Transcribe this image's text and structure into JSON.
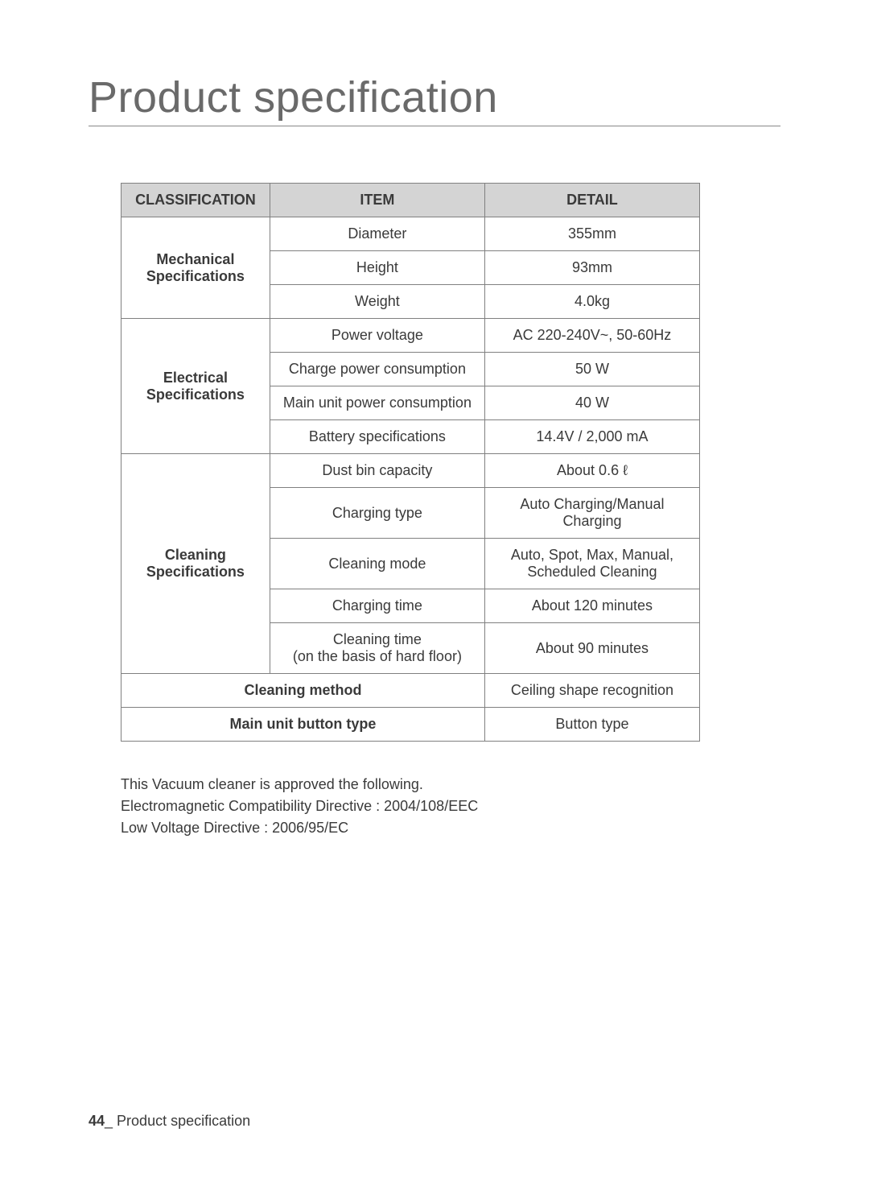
{
  "title": "Product specification",
  "table": {
    "headers": {
      "classification": "CLASSIFICATION",
      "item": "ITEM",
      "detail": "DETAIL"
    },
    "sections": {
      "mechanical": {
        "label": "Mechanical Specifications",
        "rows": [
          {
            "item": "Diameter",
            "detail": "355mm"
          },
          {
            "item": "Height",
            "detail": "93mm"
          },
          {
            "item": "Weight",
            "detail": "4.0kg"
          }
        ]
      },
      "electrical": {
        "label": "Electrical Specifications",
        "rows": [
          {
            "item": "Power voltage",
            "detail": "AC 220-240V~, 50-60Hz"
          },
          {
            "item": "Charge power consumption",
            "detail": "50 W"
          },
          {
            "item": "Main unit power consumption",
            "detail": "40 W"
          },
          {
            "item": "Battery specifications",
            "detail": "14.4V / 2,000 mA"
          }
        ]
      },
      "cleaning": {
        "label": "Cleaning Specifications",
        "rows": [
          {
            "item": "Dust bin capacity",
            "detail": "About 0.6 ℓ"
          },
          {
            "item": "Charging type",
            "detail": "Auto Charging/Manual Charging"
          },
          {
            "item": "Cleaning mode",
            "detail": "Auto, Spot, Max, Manual, Scheduled Cleaning"
          },
          {
            "item": "Charging time",
            "detail": "About 120 minutes"
          },
          {
            "item": "Cleaning time\n(on the basis of hard floor)",
            "detail": "About 90 minutes"
          }
        ]
      },
      "cleaning_method": {
        "label": "Cleaning method",
        "detail": "Ceiling shape recognition"
      },
      "button_type": {
        "label": "Main unit button type",
        "detail": "Button type"
      }
    }
  },
  "notes": {
    "line1": "This Vacuum cleaner is approved the following.",
    "line2": "Electromagnetic Compatibility Directive : 2004/108/EEC",
    "line3": "Low Voltage Directive : 2006/95/EC"
  },
  "footer": {
    "page_num": "44",
    "underscore": "_",
    "section": " Product specification"
  }
}
